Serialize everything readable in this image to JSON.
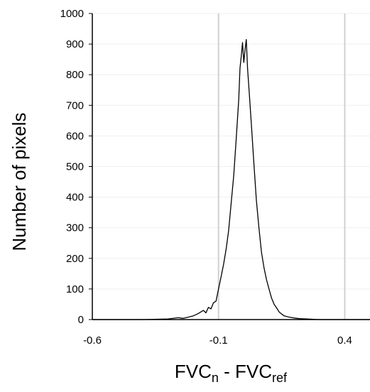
{
  "chart_data": {
    "type": "line",
    "title": "",
    "xlabel": {
      "main": "FVC",
      "sub_left": "n",
      "middle": " - FVC",
      "sub_right": "ref"
    },
    "ylabel": "Number of pixels",
    "xlim": [
      -0.6,
      0.5
    ],
    "ylim": [
      0,
      1000
    ],
    "x_ticks": [
      -0.6,
      -0.1,
      0.4
    ],
    "x_tick_labels": [
      "-0.6",
      "-0.1",
      "0.4"
    ],
    "y_ticks": [
      0,
      100,
      200,
      300,
      400,
      500,
      600,
      700,
      800,
      900,
      1000
    ],
    "y_tick_labels": [
      "0",
      "100",
      "200",
      "300",
      "400",
      "500",
      "600",
      "700",
      "800",
      "900",
      "1000"
    ],
    "vertical_gridlines_at": [
      -0.1,
      0.4
    ],
    "horizontal_gridlines": true,
    "legend": "none",
    "series": [
      {
        "color": "#000000",
        "points": [
          [
            -0.6,
            0
          ],
          [
            -0.4,
            0
          ],
          [
            -0.3,
            2
          ],
          [
            -0.26,
            6
          ],
          [
            -0.24,
            4
          ],
          [
            -0.22,
            8
          ],
          [
            -0.2,
            12
          ],
          [
            -0.18,
            20
          ],
          [
            -0.16,
            30
          ],
          [
            -0.15,
            22
          ],
          [
            -0.14,
            40
          ],
          [
            -0.13,
            35
          ],
          [
            -0.12,
            55
          ],
          [
            -0.11,
            60
          ],
          [
            -0.1,
            100
          ],
          [
            -0.09,
            140
          ],
          [
            -0.08,
            180
          ],
          [
            -0.07,
            230
          ],
          [
            -0.06,
            290
          ],
          [
            -0.05,
            380
          ],
          [
            -0.04,
            470
          ],
          [
            -0.03,
            590
          ],
          [
            -0.02,
            720
          ],
          [
            -0.015,
            820
          ],
          [
            -0.01,
            860
          ],
          [
            -0.005,
            905
          ],
          [
            0.0,
            840
          ],
          [
            0.005,
            880
          ],
          [
            0.01,
            915
          ],
          [
            0.015,
            820
          ],
          [
            0.02,
            760
          ],
          [
            0.03,
            640
          ],
          [
            0.04,
            510
          ],
          [
            0.05,
            390
          ],
          [
            0.06,
            300
          ],
          [
            0.07,
            220
          ],
          [
            0.08,
            170
          ],
          [
            0.09,
            130
          ],
          [
            0.1,
            100
          ],
          [
            0.11,
            70
          ],
          [
            0.12,
            50
          ],
          [
            0.13,
            38
          ],
          [
            0.14,
            25
          ],
          [
            0.15,
            18
          ],
          [
            0.16,
            12
          ],
          [
            0.18,
            8
          ],
          [
            0.2,
            5
          ],
          [
            0.22,
            3
          ],
          [
            0.25,
            2
          ],
          [
            0.3,
            0
          ],
          [
            0.4,
            0
          ],
          [
            0.5,
            0
          ]
        ]
      }
    ]
  }
}
